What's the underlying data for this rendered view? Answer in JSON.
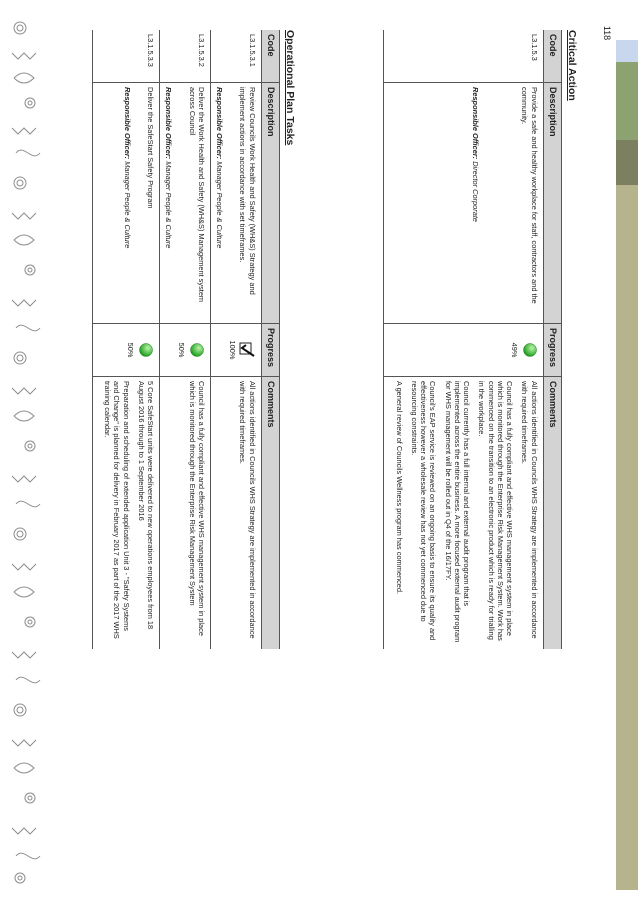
{
  "page_number": "118",
  "colors": {
    "header_bg": "#d3d3d3",
    "progress_green": "#2fb52f",
    "tab_blue": "#c9d7ee",
    "tab_green": "#8da271",
    "tab_olive": "#7d8060",
    "tab_khaki": "#b6b48c"
  },
  "critical_action": {
    "title": "Critical Action",
    "headers": [
      "Code",
      "Description",
      "Progress",
      "Comments"
    ],
    "rows": [
      {
        "code": "L3.1.5.3",
        "description": "Provide a safe and healthy workplace for staff, contractors and the community.",
        "officer_label": "Responsible Officer:",
        "officer": "Director Corporate",
        "progress_icon": "green-circle",
        "progress": "49%",
        "comments": [
          "All actions identified in Councils WHS Strategy are implemented in accordance with required timeframes.",
          "Council has a fully compliant and effective WHS management system in place which is monitored through the Enterprise Risk Management System. Work has commenced on the transition to an electronic product which is ready for trialling in the workplace.",
          "Council currently has a full internal and external audit program that is implemented across the entire business. A more focused external audit program for WHS management will be rolled out in Q4 of the 16/17FY.",
          "Council's EAP service is reviewed on an ongoing basis to ensure its quality and effectiveness however a wholesale review has not yet commenced due to resourcing constraints.",
          "A general review of Councils Wellness program has commenced."
        ]
      }
    ]
  },
  "operational_plan": {
    "title": "Operational Plan Tasks",
    "headers": [
      "Code",
      "Description",
      "Progress",
      "Comments"
    ],
    "rows": [
      {
        "code": "L3.1.5.3.1",
        "description": "Review Councils Work Health and Safety (WH&S) Strategy and implement actions in accordance with set timeframes.",
        "officer_label": "Responsible Officer:",
        "officer": "Manager People & Culture",
        "progress_icon": "check",
        "progress": "100%",
        "comments": [
          "All actions identified in Councils WHS Strategy are implemented in accordance with required timeframes."
        ]
      },
      {
        "code": "L3.1.5.3.2",
        "description": "Deliver the Work Health and Safety (WH&S) Management system across Council",
        "officer_label": "Responsible Officer:",
        "officer": "Manager People & Culture",
        "progress_icon": "green-circle",
        "progress": "50%",
        "comments": [
          "Council has a fully compliant and effective WHS management system in place which is monitored through the Enterprise Risk Management System"
        ]
      },
      {
        "code": "L3.1.5.3.3",
        "description": "Deliver the SafeStart Safety Program",
        "officer_label": "Responsible Officer:",
        "officer": "Manager People & Culture",
        "progress_icon": "green-circle",
        "progress": "50%",
        "comments": [
          "5 Core SafeStart units were delivered to new operations employees from 18 August 2016 through to 1 September 2016",
          "Preparation and scheduling of extended application Unit 3 - \"Safety Systems and Change\" is planned for delivery in February 2017 as part of the 2017 WHS training calendar."
        ]
      }
    ]
  }
}
